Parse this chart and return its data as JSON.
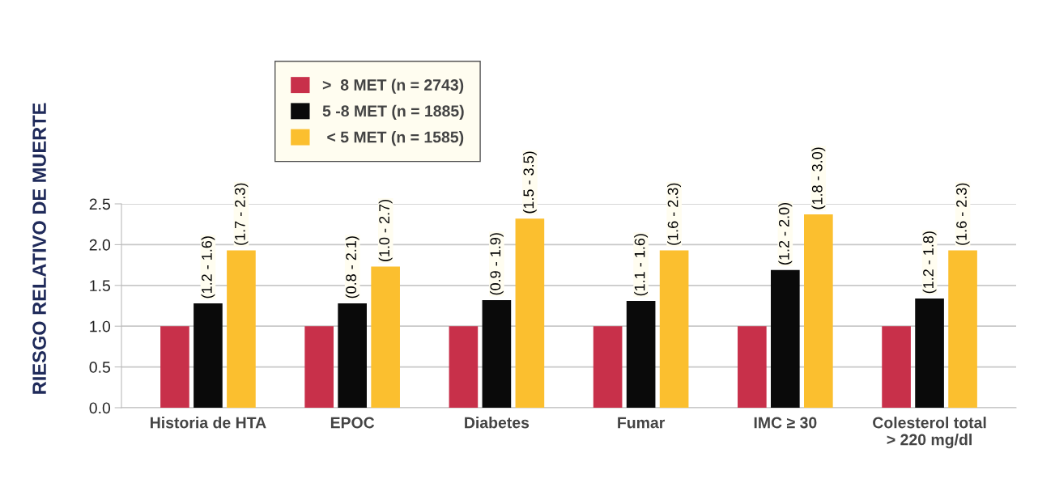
{
  "chart_data": {
    "type": "bar",
    "ylabel": "RIESGO RELATIVO DE MUERTE",
    "categories": [
      "Historia de HTA",
      "EPOC",
      "Diabetes",
      "Fumar",
      "IMC ≥ 30",
      "Colesterol total\n> 220 mg/dl"
    ],
    "series": [
      {
        "name": ">  8 MET (n = 2743)",
        "color": "#c8304a",
        "values": [
          1.0,
          1.0,
          1.0,
          1.0,
          1.0,
          1.0
        ]
      },
      {
        "name": "5 -8 MET (n = 1885)",
        "color": "#0a0a0a",
        "values": [
          1.28,
          1.28,
          1.32,
          1.31,
          1.69,
          1.34
        ],
        "value_labels": [
          "(1.2 - 1.6)",
          "(0.8 - 2.1)",
          "(0.9 - 1.9)",
          "(1.1 - 1.6)",
          "(1.2 - 2.0)",
          "(1.2 - 1.8)"
        ]
      },
      {
        "name": " < 5 MET (n = 1585)",
        "color": "#fbbf2f",
        "values": [
          1.93,
          1.73,
          2.32,
          1.93,
          2.37,
          1.93
        ],
        "value_labels": [
          "(1.7 - 2.3)",
          "(1.0 - 2.7)",
          "(1.5 - 3.5)",
          "(1.6 - 2.3)",
          "(1.8 - 3.0)",
          "(1.6 - 2.3)"
        ]
      }
    ],
    "ylim": [
      0,
      2.5
    ],
    "yticks": [
      {
        "value": 0,
        "label": "0.0"
      },
      {
        "value": 0.5,
        "label": "0.5"
      },
      {
        "value": 1,
        "label": "1.0"
      },
      {
        "value": 1.5,
        "label": "1.5"
      },
      {
        "value": 2,
        "label": "2.0"
      },
      {
        "value": 2.5,
        "label": "2.5"
      }
    ],
    "grid": "y",
    "legend": "top left"
  }
}
